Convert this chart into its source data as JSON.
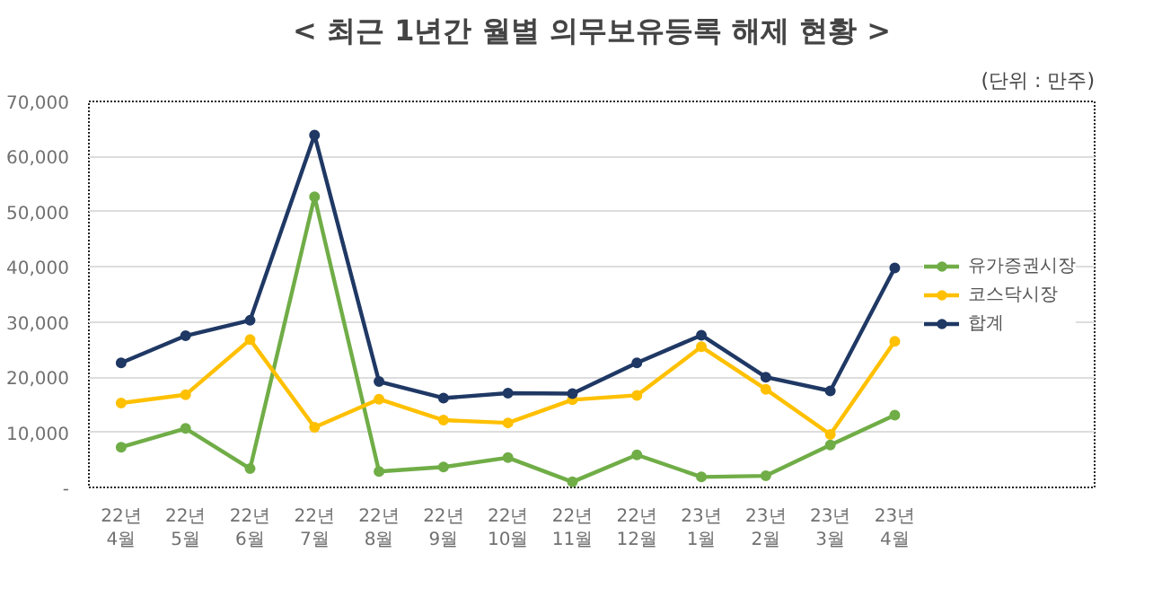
{
  "chart_data": {
    "type": "line",
    "title": "< 최근 1년간 월별 의무보유등록 해제 현황 >",
    "annotations": [
      "(단위 : 만주)"
    ],
    "categories": [
      "22년 4월",
      "22년 5월",
      "22년 6월",
      "22년 7월",
      "22년 8월",
      "22년 9월",
      "22년 10월",
      "22년 11월",
      "22년 12월",
      "23년 1월",
      "23년 2월",
      "23년 3월",
      "23년 4월"
    ],
    "series": [
      {
        "name": "유가증권시장",
        "color": "#70ad47",
        "values": [
          7300,
          10700,
          3400,
          52700,
          2900,
          3700,
          5400,
          1000,
          5900,
          1900,
          2100,
          7700,
          13100
        ]
      },
      {
        "name": "코스닥시장",
        "color": "#ffc000",
        "values": [
          15300,
          16800,
          26800,
          10900,
          16000,
          12200,
          11700,
          15900,
          16700,
          25500,
          17800,
          9600,
          26500
        ]
      },
      {
        "name": "합계",
        "color": "#1f3864",
        "values": [
          22600,
          27500,
          30300,
          63900,
          19200,
          16200,
          17100,
          17000,
          22600,
          27600,
          20000,
          17500,
          39800
        ]
      }
    ],
    "ylim": [
      0,
      70000
    ],
    "yticks": [
      {
        "value": 0,
        "label": "-"
      },
      {
        "value": 10000,
        "label": "10,000"
      },
      {
        "value": 20000,
        "label": "20,000"
      },
      {
        "value": 30000,
        "label": "30,000"
      },
      {
        "value": 40000,
        "label": "40,000"
      },
      {
        "value": 50000,
        "label": "50,000"
      },
      {
        "value": 60000,
        "label": "60,000"
      },
      {
        "value": 70000,
        "label": "70,000"
      }
    ],
    "grid": "y",
    "legend": "right",
    "marker": "circle",
    "line_style": "solid"
  }
}
